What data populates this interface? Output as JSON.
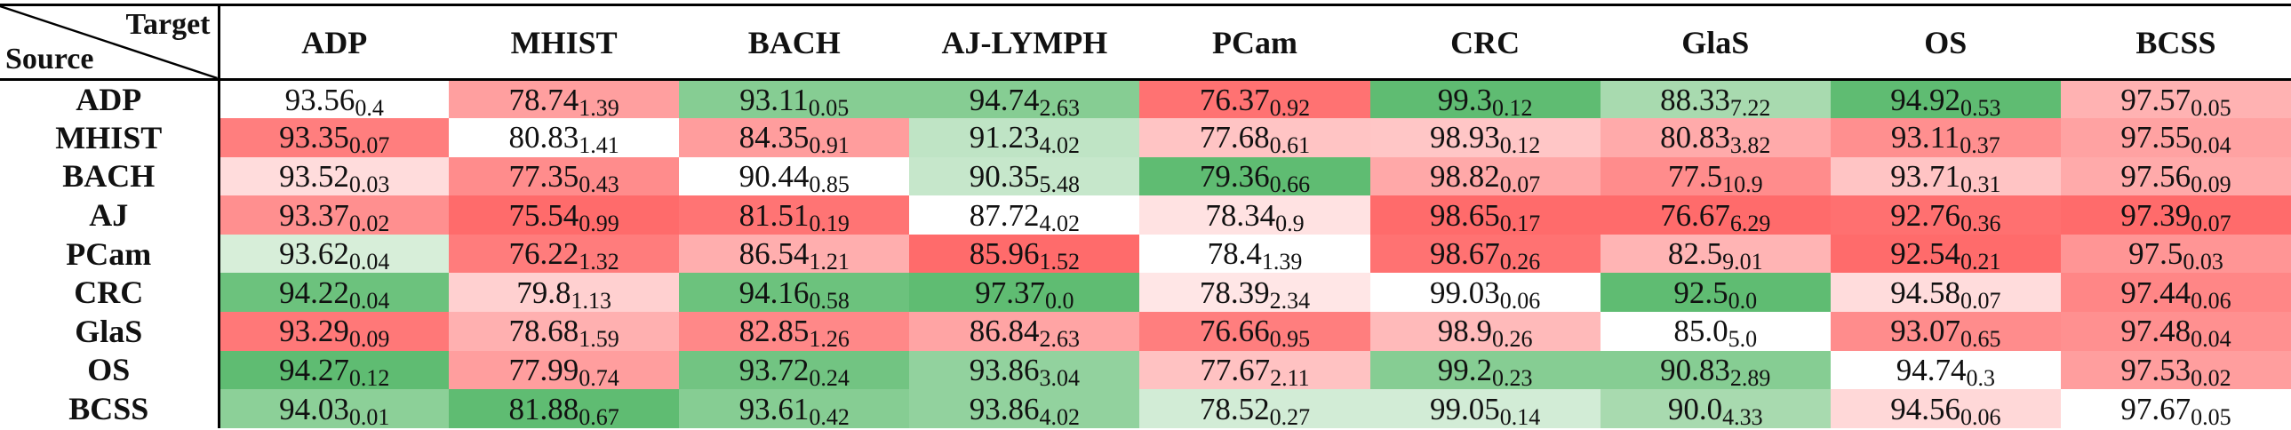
{
  "table": {
    "corner_target": "Target",
    "corner_source": "Source",
    "columns": [
      "ADP",
      "MHIST",
      "BACH",
      "AJ-LYMPH",
      "PCam",
      "CRC",
      "GlaS",
      "OS",
      "BCSS"
    ],
    "rows": [
      {
        "source": "ADP",
        "cells": [
          {
            "value": "93.56",
            "std": "0.4",
            "color": "#ffffff"
          },
          {
            "value": "78.74",
            "std": "1.39",
            "color": "#ff9f9f"
          },
          {
            "value": "93.11",
            "std": "0.05",
            "color": "#86cd93"
          },
          {
            "value": "94.74",
            "std": "2.63",
            "color": "#86cd93"
          },
          {
            "value": "76.37",
            "std": "0.92",
            "color": "#ff7272"
          },
          {
            "value": "99.3",
            "std": "0.12",
            "color": "#5fbc72"
          },
          {
            "value": "88.33",
            "std": "7.22",
            "color": "#a8daaf"
          },
          {
            "value": "94.92",
            "std": "0.53",
            "color": "#5fbc72"
          },
          {
            "value": "97.57",
            "std": "0.05",
            "color": "#ffb2b2"
          }
        ]
      },
      {
        "source": "MHIST",
        "cells": [
          {
            "value": "93.35",
            "std": "0.07",
            "color": "#ff7e7e"
          },
          {
            "value": "80.83",
            "std": "1.41",
            "color": "#ffffff"
          },
          {
            "value": "84.35",
            "std": "0.91",
            "color": "#ff9d9d"
          },
          {
            "value": "91.23",
            "std": "4.02",
            "color": "#bfe4c5"
          },
          {
            "value": "77.68",
            "std": "0.61",
            "color": "#ffc4c4"
          },
          {
            "value": "98.93",
            "std": "0.12",
            "color": "#ffc6c6"
          },
          {
            "value": "80.83",
            "std": "3.82",
            "color": "#ffaaaa"
          },
          {
            "value": "93.11",
            "std": "0.37",
            "color": "#ff8f8f"
          },
          {
            "value": "97.55",
            "std": "0.04",
            "color": "#ffa2a2"
          }
        ]
      },
      {
        "source": "BACH",
        "cells": [
          {
            "value": "93.52",
            "std": "0.03",
            "color": "#ffdcdc"
          },
          {
            "value": "77.35",
            "std": "0.43",
            "color": "#ff8c8c"
          },
          {
            "value": "90.44",
            "std": "0.85",
            "color": "#ffffff"
          },
          {
            "value": "90.35",
            "std": "5.48",
            "color": "#c6e7cb"
          },
          {
            "value": "79.36",
            "std": "0.66",
            "color": "#5fbc72"
          },
          {
            "value": "98.82",
            "std": "0.07",
            "color": "#ffa8a8"
          },
          {
            "value": "77.5",
            "std": "10.9",
            "color": "#ff8c8c"
          },
          {
            "value": "93.71",
            "std": "0.31",
            "color": "#ffc4c4"
          },
          {
            "value": "97.56",
            "std": "0.09",
            "color": "#ffaaaa"
          }
        ]
      },
      {
        "source": "AJ",
        "cells": [
          {
            "value": "93.37",
            "std": "0.02",
            "color": "#ff8f8f"
          },
          {
            "value": "75.54",
            "std": "0.99",
            "color": "#ff6b6b"
          },
          {
            "value": "81.51",
            "std": "0.19",
            "color": "#ff7474"
          },
          {
            "value": "87.72",
            "std": "4.02",
            "color": "#ffffff"
          },
          {
            "value": "78.34",
            "std": "0.9",
            "color": "#ffe2e2"
          },
          {
            "value": "98.65",
            "std": "0.17",
            "color": "#ff6b6b"
          },
          {
            "value": "76.67",
            "std": "6.29",
            "color": "#ff6b6b"
          },
          {
            "value": "92.76",
            "std": "0.36",
            "color": "#ff7070"
          },
          {
            "value": "97.39",
            "std": "0.07",
            "color": "#ff6b6b"
          }
        ]
      },
      {
        "source": "PCam",
        "cells": [
          {
            "value": "93.62",
            "std": "0.04",
            "color": "#d7eed9"
          },
          {
            "value": "76.22",
            "std": "1.32",
            "color": "#ff7c7c"
          },
          {
            "value": "86.54",
            "std": "1.21",
            "color": "#ffaeae"
          },
          {
            "value": "85.96",
            "std": "1.52",
            "color": "#ff6b6b"
          },
          {
            "value": "78.4",
            "std": "1.39",
            "color": "#ffffff"
          },
          {
            "value": "98.67",
            "std": "0.26",
            "color": "#ff7272"
          },
          {
            "value": "82.5",
            "std": "9.01",
            "color": "#ffb4b4"
          },
          {
            "value": "92.54",
            "std": "0.21",
            "color": "#ff6b6b"
          },
          {
            "value": "97.5",
            "std": "0.03",
            "color": "#ff9595"
          }
        ]
      },
      {
        "source": "CRC",
        "cells": [
          {
            "value": "94.22",
            "std": "0.04",
            "color": "#6cc27d"
          },
          {
            "value": "79.8",
            "std": "1.13",
            "color": "#ffd0d0"
          },
          {
            "value": "94.16",
            "std": "0.58",
            "color": "#6cc27d"
          },
          {
            "value": "97.37",
            "std": "0.0",
            "color": "#5fbc72"
          },
          {
            "value": "78.39",
            "std": "2.34",
            "color": "#ffe6e6"
          },
          {
            "value": "99.03",
            "std": "0.06",
            "color": "#ffffff"
          },
          {
            "value": "92.5",
            "std": "0.0",
            "color": "#5fbc72"
          },
          {
            "value": "94.58",
            "std": "0.07",
            "color": "#ffdcdc"
          },
          {
            "value": "97.44",
            "std": "0.06",
            "color": "#ff8686"
          }
        ]
      },
      {
        "source": "GlaS",
        "cells": [
          {
            "value": "93.29",
            "std": "0.09",
            "color": "#ff7878"
          },
          {
            "value": "78.68",
            "std": "1.59",
            "color": "#ffb0b0"
          },
          {
            "value": "82.85",
            "std": "1.26",
            "color": "#ff8888"
          },
          {
            "value": "86.84",
            "std": "2.63",
            "color": "#ffa4a4"
          },
          {
            "value": "76.66",
            "std": "0.95",
            "color": "#ff7e7e"
          },
          {
            "value": "98.9",
            "std": "0.26",
            "color": "#ffbaba"
          },
          {
            "value": "85.0",
            "std": "5.0",
            "color": "#ffffff"
          },
          {
            "value": "93.07",
            "std": "0.65",
            "color": "#ff8c8c"
          },
          {
            "value": "97.48",
            "std": "0.04",
            "color": "#ff9090"
          }
        ]
      },
      {
        "source": "OS",
        "cells": [
          {
            "value": "94.27",
            "std": "0.12",
            "color": "#5fbc72"
          },
          {
            "value": "77.99",
            "std": "0.74",
            "color": "#ff9e9e"
          },
          {
            "value": "93.72",
            "std": "0.24",
            "color": "#72c482"
          },
          {
            "value": "93.86",
            "std": "3.04",
            "color": "#92d29e"
          },
          {
            "value": "77.67",
            "std": "2.11",
            "color": "#ffc2c2"
          },
          {
            "value": "99.2",
            "std": "0.23",
            "color": "#86cd93"
          },
          {
            "value": "90.83",
            "std": "2.89",
            "color": "#86cd93"
          },
          {
            "value": "94.74",
            "std": "0.3",
            "color": "#ffffff"
          },
          {
            "value": "97.53",
            "std": "0.02",
            "color": "#ff9e9e"
          }
        ]
      },
      {
        "source": "BCSS",
        "cells": [
          {
            "value": "94.03",
            "std": "0.01",
            "color": "#8cd098"
          },
          {
            "value": "81.88",
            "std": "0.67",
            "color": "#5fbc72"
          },
          {
            "value": "93.61",
            "std": "0.42",
            "color": "#86cd93"
          },
          {
            "value": "93.86",
            "std": "4.02",
            "color": "#92d29e"
          },
          {
            "value": "78.52",
            "std": "0.27",
            "color": "#d2ecd6"
          },
          {
            "value": "99.05",
            "std": "0.14",
            "color": "#d2ecd6"
          },
          {
            "value": "90.0",
            "std": "4.33",
            "color": "#a8daaf"
          },
          {
            "value": "94.56",
            "std": "0.06",
            "color": "#ffd8d8"
          },
          {
            "value": "97.67",
            "std": "0.05",
            "color": "#ffffff"
          }
        ]
      }
    ]
  }
}
